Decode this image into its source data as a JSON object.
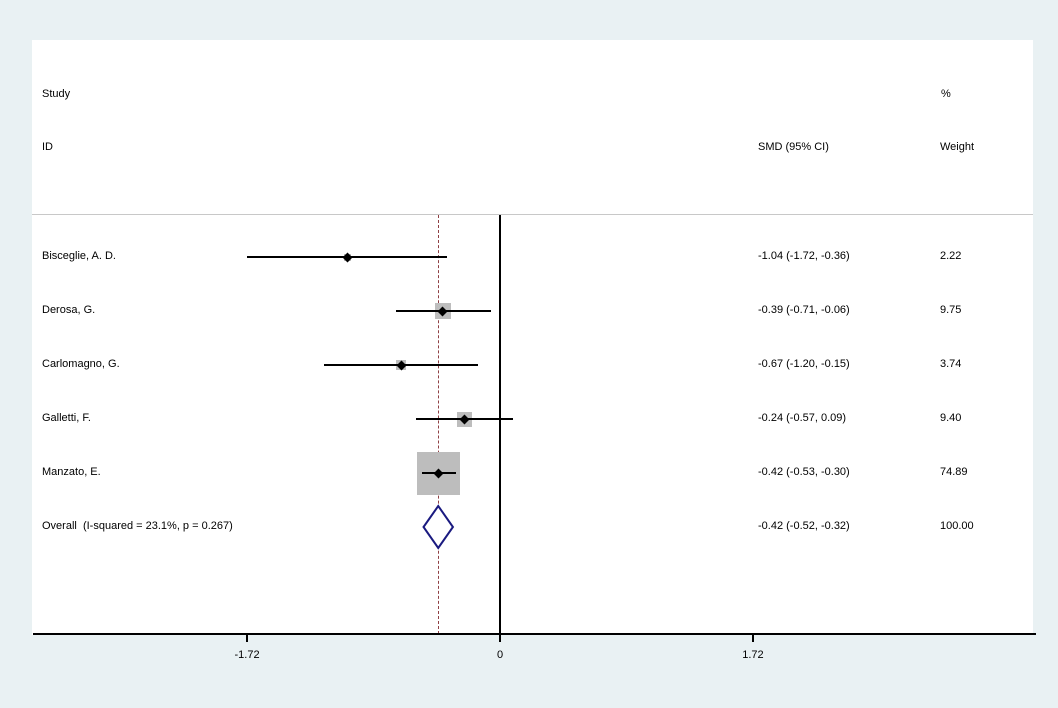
{
  "header": {
    "study": "Study",
    "id": "ID",
    "percent": "%",
    "smd": "SMD (95% CI)",
    "weight": "Weight"
  },
  "chart_data": {
    "type": "forest",
    "title": "",
    "xlabel": "",
    "x_axis": {
      "ticks": [
        -1.72,
        0,
        1.72
      ],
      "tick_labels": [
        "-1.72",
        "0",
        "1.72"
      ]
    },
    "null_line_x": 0,
    "overall_dashed_line_x": -0.42,
    "studies": [
      {
        "id": "Bisceglie, A. D.",
        "smd": -1.04,
        "ci_low": -1.72,
        "ci_high": -0.36,
        "smd_label": "-1.04 (-1.72, -0.36)",
        "weight": 2.22,
        "weight_label": "2.22"
      },
      {
        "id": "Derosa, G.",
        "smd": -0.39,
        "ci_low": -0.71,
        "ci_high": -0.06,
        "smd_label": "-0.39 (-0.71, -0.06)",
        "weight": 9.75,
        "weight_label": "9.75"
      },
      {
        "id": "Carlomagno, G.",
        "smd": -0.67,
        "ci_low": -1.2,
        "ci_high": -0.15,
        "smd_label": "-0.67 (-1.20, -0.15)",
        "weight": 3.74,
        "weight_label": "3.74"
      },
      {
        "id": "Galletti, F.",
        "smd": -0.24,
        "ci_low": -0.57,
        "ci_high": 0.09,
        "smd_label": "-0.24 (-0.57, 0.09)",
        "weight": 9.4,
        "weight_label": "9.40"
      },
      {
        "id": "Manzato, E.",
        "smd": -0.42,
        "ci_low": -0.53,
        "ci_high": -0.3,
        "smd_label": "-0.42 (-0.53, -0.30)",
        "weight": 74.89,
        "weight_label": "74.89"
      }
    ],
    "overall": {
      "id": "Overall  (I-squared = 23.1%, p = 0.267)",
      "smd": -0.42,
      "ci_low": -0.52,
      "ci_high": -0.32,
      "smd_label": "-0.42 (-0.52, -0.32)",
      "weight_label": "100.00"
    }
  },
  "colors": {
    "background": "#e9f1f3",
    "plot_bg": "#ffffff",
    "divider": "#c8c8c8",
    "null_line": "#000000",
    "overall_line": "#8f4044",
    "weight_box": "#bdbdbd",
    "diamond_outline": "#1a1a80",
    "diamond_fill": "#ffffff"
  }
}
